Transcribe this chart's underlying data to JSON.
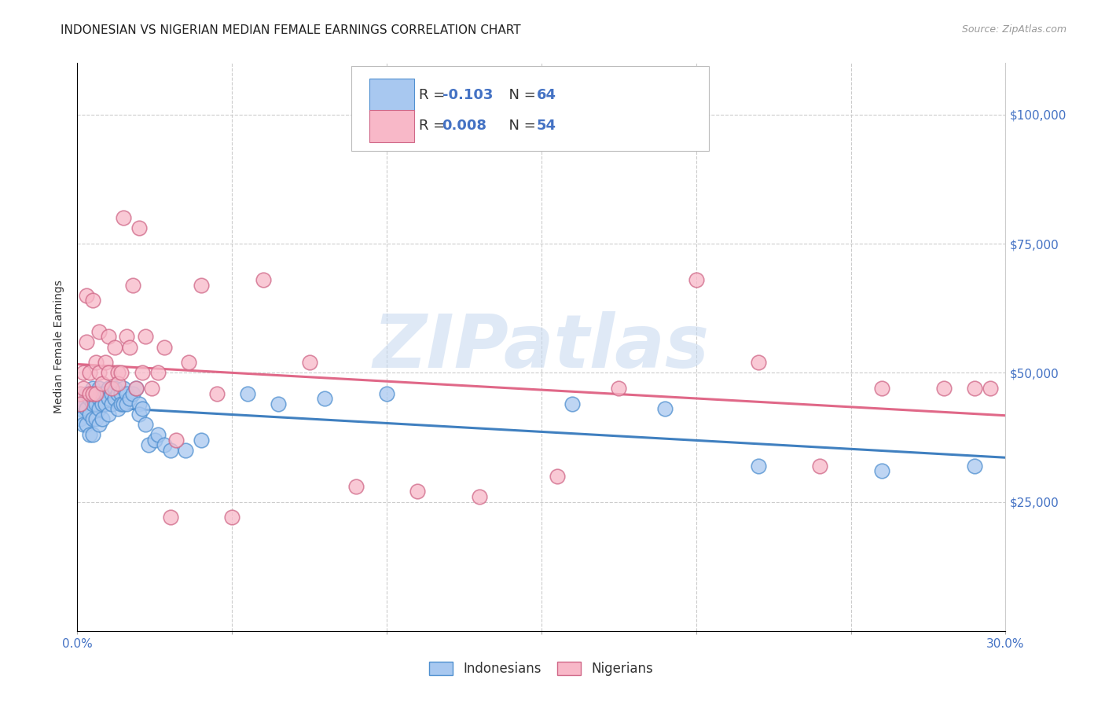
{
  "title": "INDONESIAN VS NIGERIAN MEDIAN FEMALE EARNINGS CORRELATION CHART",
  "source": "Source: ZipAtlas.com",
  "ylabel": "Median Female Earnings",
  "xlim": [
    0.0,
    0.3
  ],
  "ylim": [
    0,
    110000
  ],
  "yticks": [
    0,
    25000,
    50000,
    75000,
    100000
  ],
  "ytick_labels": [
    "",
    "$25,000",
    "$50,000",
    "$75,000",
    "$100,000"
  ],
  "xticks": [
    0.0,
    0.05,
    0.1,
    0.15,
    0.2,
    0.25,
    0.3
  ],
  "indonesian_color": "#A8C8F0",
  "indonesian_edge_color": "#5090D0",
  "nigerian_color": "#F8B8C8",
  "nigerian_edge_color": "#D06888",
  "indonesian_line_color": "#4080C0",
  "nigerian_line_color": "#E06888",
  "watermark": "ZIPatlas",
  "background_color": "#FFFFFF",
  "grid_color": "#CCCCCC",
  "indonesian_x": [
    0.001,
    0.001,
    0.002,
    0.002,
    0.003,
    0.003,
    0.003,
    0.004,
    0.004,
    0.004,
    0.005,
    0.005,
    0.005,
    0.005,
    0.006,
    0.006,
    0.006,
    0.007,
    0.007,
    0.007,
    0.007,
    0.008,
    0.008,
    0.008,
    0.009,
    0.009,
    0.01,
    0.01,
    0.01,
    0.011,
    0.011,
    0.012,
    0.012,
    0.013,
    0.013,
    0.014,
    0.014,
    0.015,
    0.015,
    0.016,
    0.016,
    0.017,
    0.018,
    0.019,
    0.02,
    0.02,
    0.021,
    0.022,
    0.023,
    0.025,
    0.026,
    0.028,
    0.03,
    0.035,
    0.04,
    0.055,
    0.065,
    0.08,
    0.1,
    0.16,
    0.19,
    0.22,
    0.26,
    0.29
  ],
  "indonesian_y": [
    43000,
    41000,
    44000,
    40000,
    46000,
    43000,
    40000,
    45000,
    42000,
    38000,
    47000,
    44000,
    41000,
    38000,
    46000,
    44000,
    41000,
    47000,
    45000,
    43000,
    40000,
    46000,
    44000,
    41000,
    46000,
    44000,
    47000,
    45000,
    42000,
    46000,
    44000,
    47000,
    45000,
    46000,
    43000,
    46000,
    44000,
    47000,
    44000,
    46000,
    44000,
    45000,
    46000,
    47000,
    44000,
    42000,
    43000,
    40000,
    36000,
    37000,
    38000,
    36000,
    35000,
    35000,
    37000,
    46000,
    44000,
    45000,
    46000,
    44000,
    43000,
    32000,
    31000,
    32000
  ],
  "nigerian_x": [
    0.001,
    0.001,
    0.002,
    0.002,
    0.003,
    0.003,
    0.004,
    0.004,
    0.005,
    0.005,
    0.006,
    0.006,
    0.007,
    0.007,
    0.008,
    0.009,
    0.01,
    0.01,
    0.011,
    0.012,
    0.013,
    0.013,
    0.014,
    0.015,
    0.016,
    0.017,
    0.018,
    0.019,
    0.02,
    0.021,
    0.022,
    0.024,
    0.026,
    0.028,
    0.03,
    0.032,
    0.036,
    0.04,
    0.045,
    0.05,
    0.06,
    0.075,
    0.09,
    0.11,
    0.13,
    0.155,
    0.175,
    0.2,
    0.22,
    0.24,
    0.26,
    0.28,
    0.29,
    0.295
  ],
  "nigerian_y": [
    46000,
    44000,
    50000,
    47000,
    65000,
    56000,
    50000,
    46000,
    64000,
    46000,
    52000,
    46000,
    58000,
    50000,
    48000,
    52000,
    57000,
    50000,
    47000,
    55000,
    50000,
    48000,
    50000,
    80000,
    57000,
    55000,
    67000,
    47000,
    78000,
    50000,
    57000,
    47000,
    50000,
    55000,
    22000,
    37000,
    52000,
    67000,
    46000,
    22000,
    68000,
    52000,
    28000,
    27000,
    26000,
    30000,
    47000,
    68000,
    52000,
    32000,
    47000,
    47000,
    47000,
    47000
  ],
  "title_fontsize": 11,
  "axis_fontsize": 10,
  "tick_fontsize": 11,
  "marker_size": 180
}
